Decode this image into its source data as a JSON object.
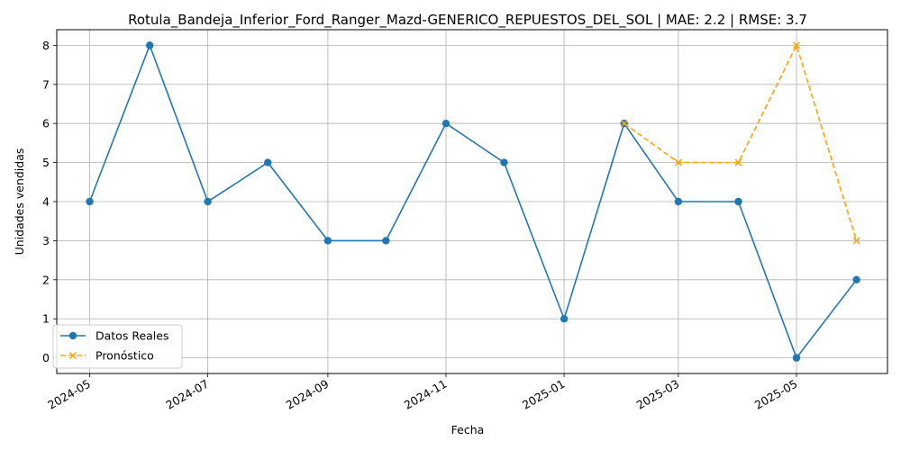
{
  "chart_data": {
    "type": "line",
    "title": "Rotula_Bandeja_Inferior_Ford_Ranger_Mazd-GENERICO_REPUESTOS_DEL_SOL | MAE: 2.2 | RMSE: 3.7",
    "xlabel": "Fecha",
    "ylabel": "Unidades vendidas",
    "x_ticks": [
      "2024-05",
      "2024-07",
      "2024-09",
      "2024-11",
      "2025-01",
      "2025-03",
      "2025-05"
    ],
    "y_ticks": [
      0,
      1,
      2,
      3,
      4,
      5,
      6,
      7,
      8
    ],
    "ylim": [
      -0.4,
      8.4
    ],
    "xlim": [
      "2024-04-14",
      "2025-06-17"
    ],
    "grid": true,
    "legend_position": "lower left",
    "series": [
      {
        "name": "Datos Reales",
        "color": "#1f77b4",
        "style": "solid",
        "marker": "circle",
        "x": [
          "2024-05-01",
          "2024-06-01",
          "2024-07-01",
          "2024-08-01",
          "2024-09-01",
          "2024-10-01",
          "2024-11-01",
          "2024-12-01",
          "2025-01-01",
          "2025-02-01",
          "2025-03-01",
          "2025-04-01",
          "2025-05-01",
          "2025-06-01"
        ],
        "values": [
          4,
          8,
          4,
          5,
          3,
          3,
          6,
          5,
          1,
          6,
          4,
          4,
          0,
          2
        ]
      },
      {
        "name": "Pronóstico",
        "color": "#ffa500",
        "style": "dashed",
        "marker": "x",
        "x": [
          "2025-02-01",
          "2025-03-01",
          "2025-04-01",
          "2025-05-01",
          "2025-06-01"
        ],
        "values": [
          6,
          5,
          5,
          8,
          3
        ]
      }
    ]
  }
}
